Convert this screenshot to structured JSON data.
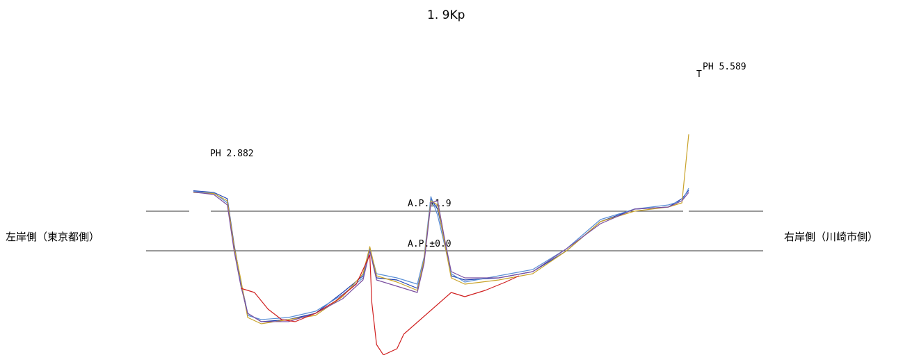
{
  "chart_data": {
    "type": "line",
    "title": "1. 9Kp",
    "left_bank_label": "左岸側（東京都側）",
    "right_bank_label": "右岸側（川崎市側）",
    "annotations": [
      {
        "text": "PH 2.882",
        "ref": "left_peak"
      },
      {
        "text": "PH 5.589",
        "ref": "right_peak"
      }
    ],
    "reference_lines": [
      {
        "label": "A.P.±1.9",
        "y": 1.9
      },
      {
        "label": "A.P.±0.0",
        "y": 0.0
      }
    ],
    "colors": [
      "#1f3fb0",
      "#5a8fd6",
      "#c9a32a",
      "#6b8e23",
      "#7a4fa0",
      "#2a9a9a",
      "#8a8a2a",
      "#d02020"
    ],
    "series": [
      {
        "color": "#1f3fb0",
        "points": [
          [
            0,
            2.88
          ],
          [
            3,
            2.8
          ],
          [
            5,
            2.5
          ],
          [
            6,
            0.3
          ],
          [
            7,
            -1.5
          ],
          [
            8,
            -3.0
          ],
          [
            10,
            -3.4
          ],
          [
            14,
            -3.3
          ],
          [
            18,
            -3.0
          ],
          [
            22,
            -2.0
          ],
          [
            25,
            -1.2
          ],
          [
            26,
            0.0
          ],
          [
            27,
            -1.3
          ],
          [
            30,
            -1.4
          ],
          [
            33,
            -1.8
          ],
          [
            34,
            -0.5
          ],
          [
            35,
            2.5
          ],
          [
            36,
            2.0
          ],
          [
            37,
            0.5
          ],
          [
            38,
            -1.2
          ],
          [
            40,
            -1.4
          ],
          [
            45,
            -1.3
          ],
          [
            50,
            -1.0
          ],
          [
            55,
            0.0
          ],
          [
            60,
            1.4
          ],
          [
            65,
            2.0
          ],
          [
            70,
            2.1
          ],
          [
            72,
            2.5
          ],
          [
            73,
            2.9
          ]
        ]
      },
      {
        "color": "#5a8fd6",
        "points": [
          [
            0,
            2.85
          ],
          [
            3,
            2.78
          ],
          [
            5,
            2.3
          ],
          [
            6,
            0.1
          ],
          [
            7,
            -1.6
          ],
          [
            8,
            -3.1
          ],
          [
            10,
            -3.3
          ],
          [
            14,
            -3.2
          ],
          [
            18,
            -2.9
          ],
          [
            22,
            -2.1
          ],
          [
            25,
            -1.3
          ],
          [
            26,
            0.1
          ],
          [
            27,
            -1.1
          ],
          [
            30,
            -1.3
          ],
          [
            33,
            -1.6
          ],
          [
            34,
            -0.3
          ],
          [
            35,
            2.6
          ],
          [
            36,
            1.7
          ],
          [
            37,
            0.3
          ],
          [
            38,
            -1.1
          ],
          [
            40,
            -1.5
          ],
          [
            45,
            -1.2
          ],
          [
            50,
            -0.9
          ],
          [
            55,
            0.1
          ],
          [
            60,
            1.5
          ],
          [
            65,
            2.0
          ],
          [
            70,
            2.2
          ],
          [
            72,
            2.4
          ],
          [
            73,
            3.0
          ]
        ]
      },
      {
        "color": "#c9a32a",
        "points": [
          [
            0,
            2.8
          ],
          [
            3,
            2.75
          ],
          [
            5,
            2.4
          ],
          [
            6,
            0.2
          ],
          [
            7,
            -1.4
          ],
          [
            8,
            -3.2
          ],
          [
            10,
            -3.5
          ],
          [
            14,
            -3.3
          ],
          [
            18,
            -3.1
          ],
          [
            22,
            -2.2
          ],
          [
            25,
            -1.1
          ],
          [
            26,
            0.2
          ],
          [
            27,
            -1.2
          ],
          [
            30,
            -1.5
          ],
          [
            33,
            -1.9
          ],
          [
            34,
            -0.4
          ],
          [
            35,
            2.4
          ],
          [
            36,
            2.2
          ],
          [
            37,
            0.4
          ],
          [
            38,
            -1.3
          ],
          [
            40,
            -1.6
          ],
          [
            45,
            -1.4
          ],
          [
            50,
            -1.1
          ],
          [
            55,
            0.0
          ],
          [
            60,
            1.4
          ],
          [
            65,
            1.9
          ],
          [
            70,
            2.1
          ],
          [
            72,
            2.3
          ],
          [
            73,
            5.589
          ]
        ]
      },
      {
        "color": "#7a4fa0",
        "points": [
          [
            0,
            2.82
          ],
          [
            3,
            2.7
          ],
          [
            5,
            2.2
          ],
          [
            6,
            0.0
          ],
          [
            7,
            -1.7
          ],
          [
            8,
            -3.0
          ],
          [
            10,
            -3.4
          ],
          [
            14,
            -3.4
          ],
          [
            18,
            -3.0
          ],
          [
            22,
            -2.3
          ],
          [
            25,
            -1.4
          ],
          [
            26,
            0.0
          ],
          [
            27,
            -1.4
          ],
          [
            30,
            -1.7
          ],
          [
            33,
            -2.0
          ],
          [
            34,
            -0.6
          ],
          [
            35,
            2.3
          ],
          [
            36,
            2.4
          ],
          [
            37,
            0.6
          ],
          [
            38,
            -1.0
          ],
          [
            40,
            -1.3
          ],
          [
            45,
            -1.3
          ],
          [
            50,
            -1.0
          ],
          [
            55,
            0.1
          ],
          [
            60,
            1.3
          ],
          [
            65,
            2.0
          ],
          [
            70,
            2.1
          ],
          [
            72,
            2.4
          ],
          [
            73,
            2.8
          ]
        ]
      },
      {
        "color": "#d02020",
        "points": [
          [
            7,
            -1.8
          ],
          [
            9,
            -2.0
          ],
          [
            11,
            -2.8
          ],
          [
            13,
            -3.3
          ],
          [
            15,
            -3.4
          ],
          [
            18,
            -3.0
          ],
          [
            21,
            -2.4
          ],
          [
            24,
            -1.6
          ],
          [
            26,
            -0.2
          ],
          [
            26.3,
            -2.5
          ],
          [
            27,
            -4.5
          ],
          [
            28,
            -5.0
          ],
          [
            30,
            -4.7
          ],
          [
            31,
            -4.0
          ],
          [
            38,
            -2.0
          ],
          [
            40,
            -2.2
          ],
          [
            43,
            -1.9
          ],
          [
            46,
            -1.5
          ],
          [
            48,
            -1.2
          ]
        ]
      }
    ]
  }
}
